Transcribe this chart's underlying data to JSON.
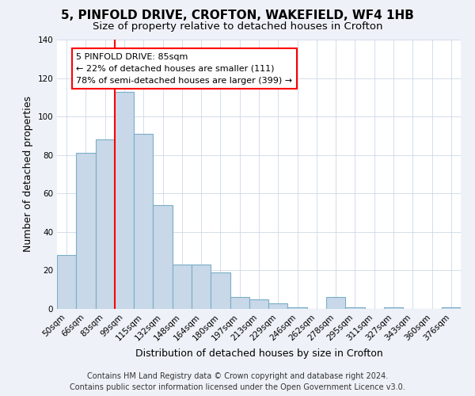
{
  "title": "5, PINFOLD DRIVE, CROFTON, WAKEFIELD, WF4 1HB",
  "subtitle": "Size of property relative to detached houses in Crofton",
  "xlabel": "Distribution of detached houses by size in Crofton",
  "ylabel": "Number of detached properties",
  "bar_labels": [
    "50sqm",
    "66sqm",
    "83sqm",
    "99sqm",
    "115sqm",
    "132sqm",
    "148sqm",
    "164sqm",
    "180sqm",
    "197sqm",
    "213sqm",
    "229sqm",
    "246sqm",
    "262sqm",
    "278sqm",
    "295sqm",
    "311sqm",
    "327sqm",
    "343sqm",
    "360sqm",
    "376sqm"
  ],
  "bar_heights": [
    28,
    81,
    88,
    113,
    91,
    54,
    23,
    23,
    19,
    6,
    5,
    3,
    1,
    0,
    6,
    1,
    0,
    1,
    0,
    0,
    1
  ],
  "bar_color": "#c8d8e8",
  "bar_edge_color": "#7aaec8",
  "vline_x_index": 2.5,
  "vline_color": "red",
  "ylim": [
    0,
    140
  ],
  "yticks": [
    0,
    20,
    40,
    60,
    80,
    100,
    120,
    140
  ],
  "annotation_title": "5 PINFOLD DRIVE: 85sqm",
  "annotation_line1": "← 22% of detached houses are smaller (111)",
  "annotation_line2": "78% of semi-detached houses are larger (399) →",
  "annotation_box_facecolor": "#ffffff",
  "annotation_box_edgecolor": "red",
  "footer1": "Contains HM Land Registry data © Crown copyright and database right 2024.",
  "footer2": "Contains public sector information licensed under the Open Government Licence v3.0.",
  "background_color": "#eef2f8",
  "plot_background_color": "#ffffff",
  "title_fontsize": 11,
  "subtitle_fontsize": 9.5,
  "axis_label_fontsize": 9,
  "tick_fontsize": 7.5,
  "annotation_fontsize": 8,
  "footer_fontsize": 7
}
